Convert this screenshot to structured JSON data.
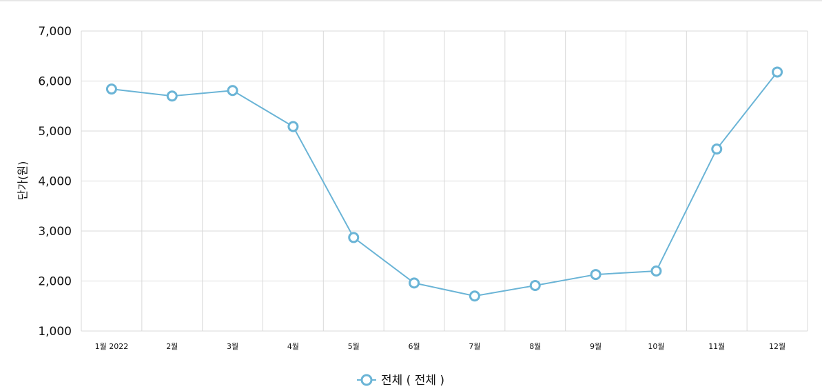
{
  "chart_data": {
    "type": "line",
    "categories": [
      "1월 2022",
      "2월",
      "3월",
      "4월",
      "5월",
      "6월",
      "7월",
      "8월",
      "9월",
      "10월",
      "11월",
      "12월"
    ],
    "series": [
      {
        "name": "전체 ( 전체 )",
        "color": "#6ab4d6",
        "values": [
          5840,
          5700,
          5810,
          5090,
          2870,
          1960,
          1700,
          1910,
          2130,
          2200,
          4640,
          6180
        ]
      }
    ],
    "ylabel": "단가(원)",
    "xlabel": "",
    "ylim": [
      1000,
      7000
    ],
    "yticks": [
      "1,000",
      "2,000",
      "3,000",
      "4,000",
      "5,000",
      "6,000",
      "7,000"
    ],
    "grid": true,
    "legend": "bottom-center"
  }
}
